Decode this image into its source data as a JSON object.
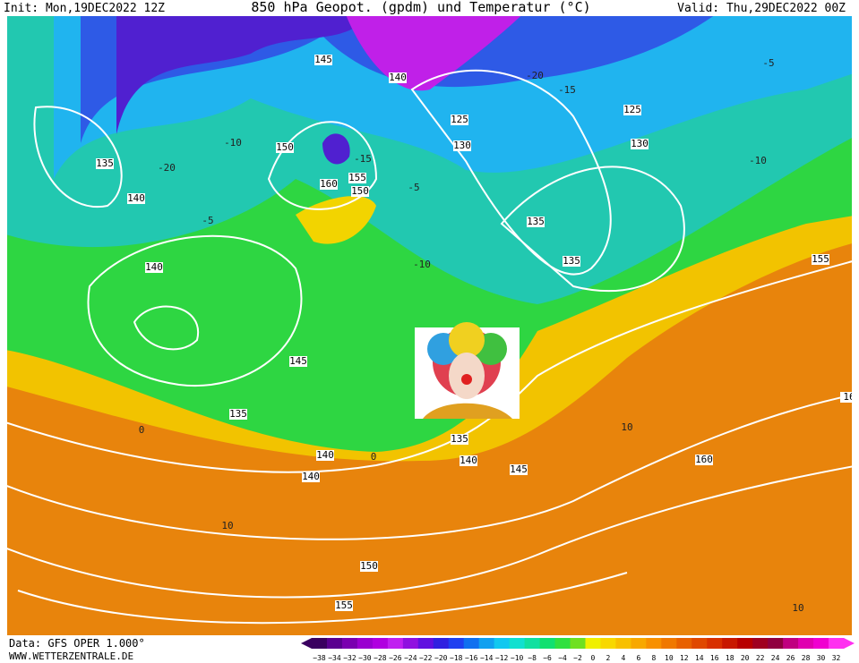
{
  "header": {
    "init": "Init: Mon,19DEC2022 12Z",
    "title": "850 hPa Geopot. (gpdm) und Temperatur (°C)",
    "valid": "Valid: Thu,29DEC2022 00Z"
  },
  "footer": {
    "data": "Data: GFS OPER 1.000°",
    "site": "WWW.WETTERZENTRALE.DE"
  },
  "colorbar": {
    "labels": [
      "−38",
      "−34",
      "−32",
      "−30",
      "−28",
      "−26",
      "−24",
      "−22",
      "−20",
      "−18",
      "−16",
      "−14",
      "−12",
      "−10",
      "−8",
      "−6",
      "−4",
      "−2",
      "0",
      "2",
      "4",
      "6",
      "8",
      "10",
      "12",
      "14",
      "16",
      "18",
      "20",
      "22",
      "24",
      "26",
      "28",
      "30",
      "32"
    ],
    "colors": [
      "#3a0060",
      "#5a0090",
      "#7a00b0",
      "#9a00d0",
      "#b000e0",
      "#c020f0",
      "#9010e0",
      "#6010e0",
      "#3020e0",
      "#2040f0",
      "#1070f0",
      "#10a0f0",
      "#10c8f0",
      "#10e0d0",
      "#10e0a0",
      "#10e070",
      "#30e040",
      "#70e020",
      "#f0f000",
      "#f8d800",
      "#f8c000",
      "#f8a800",
      "#f89000",
      "#f07800",
      "#e86000",
      "#e04800",
      "#d83000",
      "#c81800",
      "#b80000",
      "#a00020",
      "#900040",
      "#c00080",
      "#e000b0",
      "#f000d0",
      "#ff30f0"
    ]
  },
  "map": {
    "geopotential_labels": [
      "145",
      "140",
      "125",
      "130",
      "125",
      "130",
      "135",
      "150",
      "160",
      "155",
      "150",
      "140",
      "135",
      "135",
      "155",
      "140",
      "145",
      "135",
      "135",
      "140",
      "140",
      "145",
      "140",
      "160",
      "150",
      "155",
      "16"
    ],
    "temperature_labels": [
      "-20",
      "-15",
      "-10",
      "-5",
      "-10",
      "-5",
      "-20",
      "-15",
      "-10",
      "-5",
      "0",
      "0",
      "10",
      "10",
      "10"
    ]
  }
}
